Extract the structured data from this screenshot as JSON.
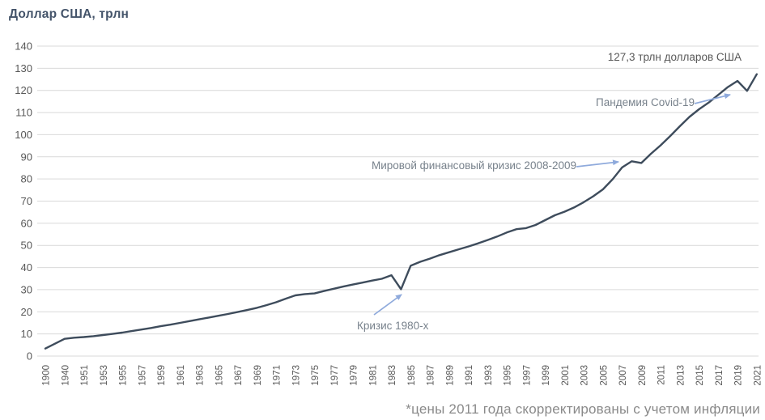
{
  "title": "Доллар США, трлн",
  "footnote": "*цены 2011 года скорректированы с учетом инфляции",
  "colors": {
    "line": "#3E4C5C",
    "grid": "#D9D9D9",
    "axis_text": "#595959",
    "title_text": "#44546A",
    "annotation_text": "#78828C",
    "value_label_text": "#595959",
    "arrow": "#8FAADC",
    "footnote_text": "#8A8A8A"
  },
  "chart_data": {
    "type": "line",
    "title": "Доллар США, трлн",
    "xlabel": "",
    "ylabel": "Доллар США, трлн",
    "ylim": [
      0,
      140
    ],
    "yticks": [
      0,
      10,
      20,
      30,
      40,
      50,
      60,
      70,
      80,
      90,
      100,
      110,
      120,
      130,
      140
    ],
    "xticklabels": [
      "1900",
      "1940",
      "1951",
      "1953",
      "1955",
      "1957",
      "1959",
      "1961",
      "1963",
      "1965",
      "1967",
      "1969",
      "1971",
      "1973",
      "1975",
      "1977",
      "1979",
      "1981",
      "1983",
      "1985",
      "1987",
      "1989",
      "1991",
      "1993",
      "1995",
      "1997",
      "1999",
      "2001",
      "2003",
      "2005",
      "2007",
      "2009",
      "2011",
      "2013",
      "2015",
      "2017",
      "2019",
      "2021"
    ],
    "grid": "horizontal",
    "legend": "none",
    "series": [
      {
        "name": "Доллар США, трлн",
        "x": [
          1900,
          1940,
          1950,
          1951,
          1952,
          1953,
          1954,
          1955,
          1956,
          1957,
          1958,
          1959,
          1960,
          1961,
          1962,
          1963,
          1964,
          1965,
          1966,
          1967,
          1968,
          1969,
          1970,
          1971,
          1972,
          1973,
          1974,
          1975,
          1976,
          1977,
          1978,
          1979,
          1980,
          1981,
          1982,
          1983,
          1984,
          1985,
          1986,
          1987,
          1988,
          1989,
          1990,
          1991,
          1992,
          1993,
          1994,
          1995,
          1996,
          1997,
          1998,
          1999,
          2000,
          2001,
          2002,
          2003,
          2004,
          2005,
          2006,
          2007,
          2008,
          2009,
          2010,
          2011,
          2012,
          2013,
          2014,
          2015,
          2016,
          2017,
          2018,
          2019,
          2020,
          2021
        ],
        "y": [
          3.4,
          7.8,
          8.3,
          8.6,
          9.0,
          9.5,
          10.0,
          10.6,
          11.3,
          12.0,
          12.7,
          13.5,
          14.2,
          15.0,
          15.8,
          16.6,
          17.4,
          18.2,
          19.0,
          19.9,
          20.8,
          21.8,
          23.0,
          24.3,
          25.9,
          27.4,
          28.0,
          28.3,
          29.4,
          30.4,
          31.4,
          32.3,
          33.2,
          34.1,
          34.9,
          36.5,
          30.2,
          40.8,
          42.6,
          44.0,
          45.6,
          46.9,
          48.2,
          49.5,
          50.9,
          52.4,
          54.0,
          55.8,
          57.3,
          57.8,
          59.2,
          61.4,
          63.6,
          65.2,
          67.1,
          69.5,
          72.2,
          75.3,
          79.8,
          85.2,
          88.0,
          87.2,
          91.4,
          95.2,
          99.4,
          103.8,
          108.0,
          111.5,
          114.5,
          118.0,
          121.5,
          124.3,
          119.8,
          127.3
        ]
      }
    ],
    "annotations": [
      {
        "text": "127,3 трлн долларов США",
        "target_year": 2021
      },
      {
        "text": "Пандемия Covid-19",
        "target_year": 2020
      },
      {
        "text": "Мировой финансовый кризис 2008-2009",
        "target_year": 2008
      },
      {
        "text": "Кризис 1980-х",
        "target_year": 1984
      }
    ]
  }
}
